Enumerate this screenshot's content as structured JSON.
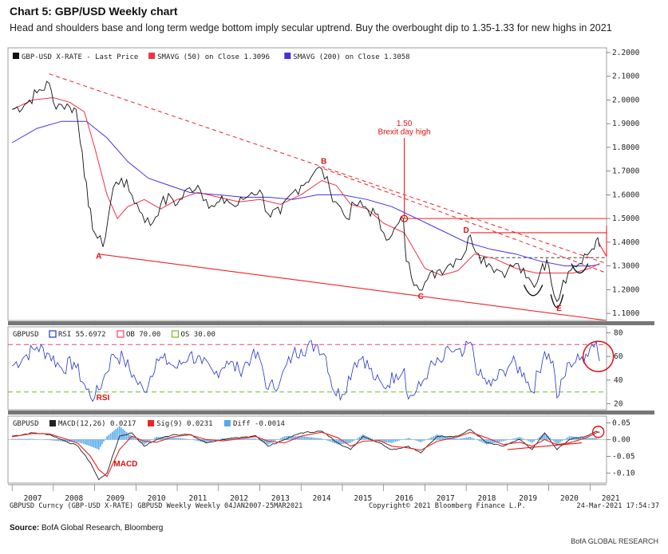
{
  "header": {
    "title": "Chart 5: GBP/USD Weekly chart",
    "subtitle": "Head and shoulders base and long term wedge bottom imply secular uptrend. Buy the overbought dip to 1.35-1.33 for new highs in 2021"
  },
  "footer": {
    "source_label": "Source:",
    "source_text": " BofA Global Research, Bloomberg",
    "branding": "BofA GLOBAL RESEARCH"
  },
  "bloomberg_footer": {
    "left": "GBPUSD Curncy (GBP-USD X-RATE) GBPUSD Weekly  Weekly 04JAN2007-25MAR2021",
    "center": "Copyright© 2021 Bloomberg Finance L.P.",
    "right": "24-Mar-2021 17:54:37"
  },
  "colors": {
    "price": "#111111",
    "sma50": "#ee3344",
    "sma200": "#4433dd",
    "trend": "#ee2222",
    "rsi": "#2233cc",
    "ob": "#ee4466",
    "os": "#77bb22",
    "macd": "#222222",
    "signal": "#ee2222",
    "diff": "#55aaee",
    "annotation": "#dd1111"
  },
  "chart_data": [
    {
      "type": "line",
      "legend": [
        {
          "key": "price",
          "label": "GBP-USD X-RATE - Last Price"
        },
        {
          "key": "sma50",
          "label": "SMAVG (50)  on Close 1.3096"
        },
        {
          "key": "sma200",
          "label": "SMAVG (200)  on Close 1.3058"
        }
      ],
      "x_ticks": [
        "2007",
        "2008",
        "2009",
        "2010",
        "2011",
        "2012",
        "2013",
        "2014",
        "2015",
        "2016",
        "2017",
        "2018",
        "2019",
        "2020",
        "2021"
      ],
      "y_ticks": [
        "2.2000",
        "2.1000",
        "2.0000",
        "1.9000",
        "1.8000",
        "1.7000",
        "1.6000",
        "1.5000",
        "1.4000",
        "1.3000",
        "1.2000",
        "1.1000"
      ],
      "ylim": [
        1.07,
        2.22
      ],
      "xlim": [
        2006.9,
        2021.4
      ],
      "price": [
        [
          2007.0,
          1.96
        ],
        [
          2007.3,
          1.98
        ],
        [
          2007.6,
          2.03
        ],
        [
          2007.9,
          2.07
        ],
        [
          2008.0,
          1.99
        ],
        [
          2008.2,
          1.98
        ],
        [
          2008.4,
          1.97
        ],
        [
          2008.55,
          1.96
        ],
        [
          2008.7,
          1.78
        ],
        [
          2008.85,
          1.55
        ],
        [
          2009.0,
          1.44
        ],
        [
          2009.2,
          1.38
        ],
        [
          2009.45,
          1.63
        ],
        [
          2009.65,
          1.67
        ],
        [
          2009.9,
          1.6
        ],
        [
          2010.15,
          1.52
        ],
        [
          2010.35,
          1.47
        ],
        [
          2010.6,
          1.56
        ],
        [
          2010.85,
          1.59
        ],
        [
          2011.0,
          1.56
        ],
        [
          2011.3,
          1.63
        ],
        [
          2011.5,
          1.64
        ],
        [
          2011.7,
          1.58
        ],
        [
          2011.9,
          1.55
        ],
        [
          2012.2,
          1.58
        ],
        [
          2012.4,
          1.55
        ],
        [
          2012.6,
          1.58
        ],
        [
          2012.8,
          1.61
        ],
        [
          2013.0,
          1.62
        ],
        [
          2013.2,
          1.52
        ],
        [
          2013.5,
          1.52
        ],
        [
          2013.8,
          1.61
        ],
        [
          2014.0,
          1.64
        ],
        [
          2014.3,
          1.69
        ],
        [
          2014.5,
          1.71
        ],
        [
          2014.7,
          1.62
        ],
        [
          2014.9,
          1.56
        ],
        [
          2015.1,
          1.5
        ],
        [
          2015.3,
          1.56
        ],
        [
          2015.5,
          1.55
        ],
        [
          2015.8,
          1.52
        ],
        [
          2016.0,
          1.44
        ],
        [
          2016.2,
          1.43
        ],
        [
          2016.48,
          1.5
        ],
        [
          2016.55,
          1.32
        ],
        [
          2016.8,
          1.22
        ],
        [
          2017.0,
          1.23
        ],
        [
          2017.3,
          1.28
        ],
        [
          2017.55,
          1.3
        ],
        [
          2017.75,
          1.33
        ],
        [
          2017.95,
          1.35
        ],
        [
          2018.1,
          1.43
        ],
        [
          2018.3,
          1.35
        ],
        [
          2018.55,
          1.31
        ],
        [
          2018.8,
          1.28
        ],
        [
          2019.0,
          1.28
        ],
        [
          2019.2,
          1.31
        ],
        [
          2019.45,
          1.25
        ],
        [
          2019.65,
          1.21
        ],
        [
          2019.85,
          1.31
        ],
        [
          2020.0,
          1.3
        ],
        [
          2020.2,
          1.15
        ],
        [
          2020.35,
          1.24
        ],
        [
          2020.6,
          1.3
        ],
        [
          2020.8,
          1.31
        ],
        [
          2021.0,
          1.36
        ],
        [
          2021.15,
          1.41
        ],
        [
          2021.23,
          1.38
        ]
      ],
      "sma50": [
        [
          2007.0,
          1.96
        ],
        [
          2007.5,
          2.0
        ],
        [
          2008.0,
          2.01
        ],
        [
          2008.4,
          1.99
        ],
        [
          2008.75,
          1.95
        ],
        [
          2009.0,
          1.8
        ],
        [
          2009.3,
          1.6
        ],
        [
          2009.55,
          1.5
        ],
        [
          2009.8,
          1.55
        ],
        [
          2010.2,
          1.58
        ],
        [
          2010.6,
          1.54
        ],
        [
          2011.0,
          1.58
        ],
        [
          2011.5,
          1.61
        ],
        [
          2012.0,
          1.59
        ],
        [
          2012.5,
          1.57
        ],
        [
          2013.0,
          1.58
        ],
        [
          2013.5,
          1.56
        ],
        [
          2014.0,
          1.6
        ],
        [
          2014.5,
          1.66
        ],
        [
          2014.85,
          1.64
        ],
        [
          2015.2,
          1.56
        ],
        [
          2015.6,
          1.54
        ],
        [
          2016.0,
          1.48
        ],
        [
          2016.5,
          1.44
        ],
        [
          2017.0,
          1.29
        ],
        [
          2017.4,
          1.26
        ],
        [
          2017.8,
          1.28
        ],
        [
          2018.2,
          1.35
        ],
        [
          2018.7,
          1.33
        ],
        [
          2019.2,
          1.29
        ],
        [
          2019.7,
          1.27
        ],
        [
          2020.2,
          1.27
        ],
        [
          2020.6,
          1.27
        ],
        [
          2021.0,
          1.29
        ],
        [
          2021.23,
          1.31
        ]
      ],
      "sma200": [
        [
          2007.0,
          1.82
        ],
        [
          2007.6,
          1.88
        ],
        [
          2008.2,
          1.91
        ],
        [
          2008.8,
          1.91
        ],
        [
          2009.3,
          1.84
        ],
        [
          2009.8,
          1.74
        ],
        [
          2010.3,
          1.67
        ],
        [
          2010.8,
          1.64
        ],
        [
          2011.3,
          1.61
        ],
        [
          2012.0,
          1.6
        ],
        [
          2012.6,
          1.59
        ],
        [
          2013.2,
          1.59
        ],
        [
          2013.8,
          1.58
        ],
        [
          2014.4,
          1.6
        ],
        [
          2015.0,
          1.6
        ],
        [
          2015.6,
          1.58
        ],
        [
          2016.2,
          1.55
        ],
        [
          2016.8,
          1.5
        ],
        [
          2017.4,
          1.45
        ],
        [
          2018.0,
          1.4
        ],
        [
          2018.6,
          1.37
        ],
        [
          2019.2,
          1.35
        ],
        [
          2019.8,
          1.32
        ],
        [
          2020.4,
          1.3
        ],
        [
          2021.0,
          1.3
        ],
        [
          2021.23,
          1.306
        ]
      ],
      "trendlines": [
        {
          "from": [
            2007.9,
            2.11
          ],
          "to": [
            2021.4,
            1.31
          ],
          "style": "dashed"
        },
        {
          "from": [
            2014.55,
            1.71
          ],
          "to": [
            2021.4,
            1.27
          ],
          "style": "dashed"
        },
        {
          "from": [
            2009.1,
            1.35
          ],
          "to": [
            2021.4,
            1.07
          ],
          "style": "solid"
        },
        {
          "from": [
            2016.5,
            1.5
          ],
          "to": [
            2021.4,
            1.5
          ],
          "style": "solid"
        },
        {
          "from": [
            2018.1,
            1.44
          ],
          "to": [
            2021.4,
            1.44
          ],
          "style": "solid"
        },
        {
          "from": [
            2016.5,
            1.5
          ],
          "to": [
            2016.5,
            1.84
          ],
          "style": "solid"
        },
        {
          "from": [
            2021.2,
            1.4
          ],
          "to": [
            2021.4,
            1.34
          ],
          "style": "solid"
        },
        {
          "from": [
            2021.4,
            1.34
          ],
          "to": [
            2021.4,
            1.47
          ],
          "style": "solid"
        }
      ],
      "level_dashed": 1.335,
      "point_labels": [
        {
          "text": "A",
          "x": 2009.1,
          "y": 1.33
        },
        {
          "text": "B",
          "x": 2014.55,
          "y": 1.73
        },
        {
          "text": "C",
          "x": 2016.9,
          "y": 1.16
        },
        {
          "text": "D",
          "x": 2018.0,
          "y": 1.44
        },
        {
          "text": "E",
          "x": 2020.25,
          "y": 1.11
        }
      ],
      "callout": {
        "value": "1.50",
        "label": "Brexit day high",
        "x": 2016.5,
        "y": 1.5
      }
    },
    {
      "type": "line",
      "legend": [
        {
          "key": "rsi",
          "label": "RSI 55.6972"
        },
        {
          "key": "ob",
          "label": "OB 70.00"
        },
        {
          "key": "os",
          "label": "OS 30.00"
        }
      ],
      "panel_label": "GBPUSD",
      "y_ticks": [
        "80",
        "60",
        "40",
        "20"
      ],
      "ylim": [
        15,
        85
      ],
      "overbought": 70,
      "oversold": 30,
      "rsi": [
        [
          2007.0,
          52
        ],
        [
          2007.3,
          60
        ],
        [
          2007.6,
          68
        ],
        [
          2007.9,
          62
        ],
        [
          2008.2,
          50
        ],
        [
          2008.5,
          55
        ],
        [
          2008.8,
          32
        ],
        [
          2009.0,
          25
        ],
        [
          2009.2,
          40
        ],
        [
          2009.45,
          62
        ],
        [
          2009.7,
          58
        ],
        [
          2010.0,
          40
        ],
        [
          2010.2,
          30
        ],
        [
          2010.5,
          58
        ],
        [
          2010.8,
          55
        ],
        [
          2011.0,
          50
        ],
        [
          2011.3,
          62
        ],
        [
          2011.6,
          54
        ],
        [
          2011.9,
          45
        ],
        [
          2012.2,
          56
        ],
        [
          2012.5,
          48
        ],
        [
          2012.8,
          60
        ],
        [
          2013.0,
          58
        ],
        [
          2013.2,
          32
        ],
        [
          2013.5,
          40
        ],
        [
          2013.8,
          62
        ],
        [
          2014.0,
          66
        ],
        [
          2014.4,
          70
        ],
        [
          2014.6,
          60
        ],
        [
          2014.8,
          30
        ],
        [
          2015.0,
          28
        ],
        [
          2015.3,
          55
        ],
        [
          2015.5,
          60
        ],
        [
          2015.8,
          40
        ],
        [
          2016.0,
          34
        ],
        [
          2016.3,
          45
        ],
        [
          2016.5,
          50
        ],
        [
          2016.6,
          24
        ],
        [
          2016.9,
          35
        ],
        [
          2017.1,
          50
        ],
        [
          2017.4,
          55
        ],
        [
          2017.6,
          66
        ],
        [
          2017.9,
          60
        ],
        [
          2018.1,
          72
        ],
        [
          2018.3,
          44
        ],
        [
          2018.6,
          35
        ],
        [
          2018.9,
          48
        ],
        [
          2019.1,
          55
        ],
        [
          2019.4,
          46
        ],
        [
          2019.6,
          30
        ],
        [
          2019.9,
          64
        ],
        [
          2020.1,
          56
        ],
        [
          2020.2,
          25
        ],
        [
          2020.5,
          55
        ],
        [
          2020.75,
          57
        ],
        [
          2020.9,
          62
        ],
        [
          2021.05,
          70
        ],
        [
          2021.15,
          73
        ],
        [
          2021.23,
          56
        ]
      ],
      "annotation": {
        "text": "RSI",
        "x": 2009.2,
        "y": 23
      }
    },
    {
      "type": "bar",
      "legend": [
        {
          "key": "macd",
          "label": "MACD(12,26) 0.0217"
        },
        {
          "key": "signal",
          "label": "Sig(9) 0.0231"
        },
        {
          "key": "diff",
          "label": "Diff -0.0014"
        }
      ],
      "panel_label": "GBPUSD",
      "y_ticks": [
        "0.05",
        "0.00",
        "-0.05",
        "-0.10"
      ],
      "ylim": [
        -0.13,
        0.07
      ],
      "macd": [
        [
          2007.0,
          0.01
        ],
        [
          2007.5,
          0.02
        ],
        [
          2007.9,
          0.015
        ],
        [
          2008.3,
          -0.005
        ],
        [
          2008.6,
          -0.02
        ],
        [
          2008.9,
          -0.07
        ],
        [
          2009.1,
          -0.12
        ],
        [
          2009.3,
          -0.1
        ],
        [
          2009.6,
          0.01
        ],
        [
          2009.9,
          0.02
        ],
        [
          2010.2,
          -0.02
        ],
        [
          2010.5,
          0.0
        ],
        [
          2010.9,
          0.015
        ],
        [
          2011.3,
          0.015
        ],
        [
          2011.7,
          -0.01
        ],
        [
          2012.1,
          0.0
        ],
        [
          2012.5,
          0.005
        ],
        [
          2012.9,
          0.012
        ],
        [
          2013.2,
          -0.02
        ],
        [
          2013.6,
          0.0
        ],
        [
          2014.0,
          0.02
        ],
        [
          2014.5,
          0.025
        ],
        [
          2014.9,
          -0.01
        ],
        [
          2015.2,
          -0.03
        ],
        [
          2015.5,
          0.01
        ],
        [
          2015.9,
          -0.01
        ],
        [
          2016.2,
          -0.03
        ],
        [
          2016.6,
          -0.02
        ],
        [
          2016.9,
          -0.04
        ],
        [
          2017.3,
          0.01
        ],
        [
          2017.8,
          0.01
        ],
        [
          2018.1,
          0.03
        ],
        [
          2018.5,
          -0.01
        ],
        [
          2018.9,
          -0.02
        ],
        [
          2019.3,
          0.0
        ],
        [
          2019.6,
          -0.03
        ],
        [
          2019.9,
          0.02
        ],
        [
          2020.2,
          -0.03
        ],
        [
          2020.5,
          0.0
        ],
        [
          2020.9,
          0.01
        ],
        [
          2021.15,
          0.025
        ],
        [
          2021.23,
          0.0217
        ]
      ],
      "signal": [
        [
          2007.0,
          0.008
        ],
        [
          2007.5,
          0.018
        ],
        [
          2007.9,
          0.017
        ],
        [
          2008.3,
          0.002
        ],
        [
          2008.6,
          -0.012
        ],
        [
          2008.9,
          -0.05
        ],
        [
          2009.1,
          -0.09
        ],
        [
          2009.3,
          -0.11
        ],
        [
          2009.6,
          -0.03
        ],
        [
          2009.9,
          0.01
        ],
        [
          2010.2,
          -0.005
        ],
        [
          2010.5,
          -0.008
        ],
        [
          2010.9,
          0.008
        ],
        [
          2011.3,
          0.014
        ],
        [
          2011.7,
          0.0
        ],
        [
          2012.1,
          -0.004
        ],
        [
          2012.5,
          0.002
        ],
        [
          2012.9,
          0.009
        ],
        [
          2013.2,
          -0.005
        ],
        [
          2013.6,
          -0.01
        ],
        [
          2014.0,
          0.01
        ],
        [
          2014.5,
          0.022
        ],
        [
          2014.9,
          0.005
        ],
        [
          2015.2,
          -0.02
        ],
        [
          2015.5,
          -0.005
        ],
        [
          2015.9,
          -0.003
        ],
        [
          2016.2,
          -0.02
        ],
        [
          2016.6,
          -0.025
        ],
        [
          2016.9,
          -0.032
        ],
        [
          2017.3,
          -0.005
        ],
        [
          2017.8,
          0.008
        ],
        [
          2018.1,
          0.022
        ],
        [
          2018.5,
          0.005
        ],
        [
          2018.9,
          -0.015
        ],
        [
          2019.3,
          -0.008
        ],
        [
          2019.6,
          -0.02
        ],
        [
          2019.9,
          0.0
        ],
        [
          2020.2,
          -0.015
        ],
        [
          2020.5,
          -0.01
        ],
        [
          2020.9,
          0.005
        ],
        [
          2021.15,
          0.02
        ],
        [
          2021.23,
          0.0231
        ]
      ],
      "annotation": {
        "text": "MACD",
        "x": 2009.75,
        "y": -0.08
      }
    }
  ]
}
